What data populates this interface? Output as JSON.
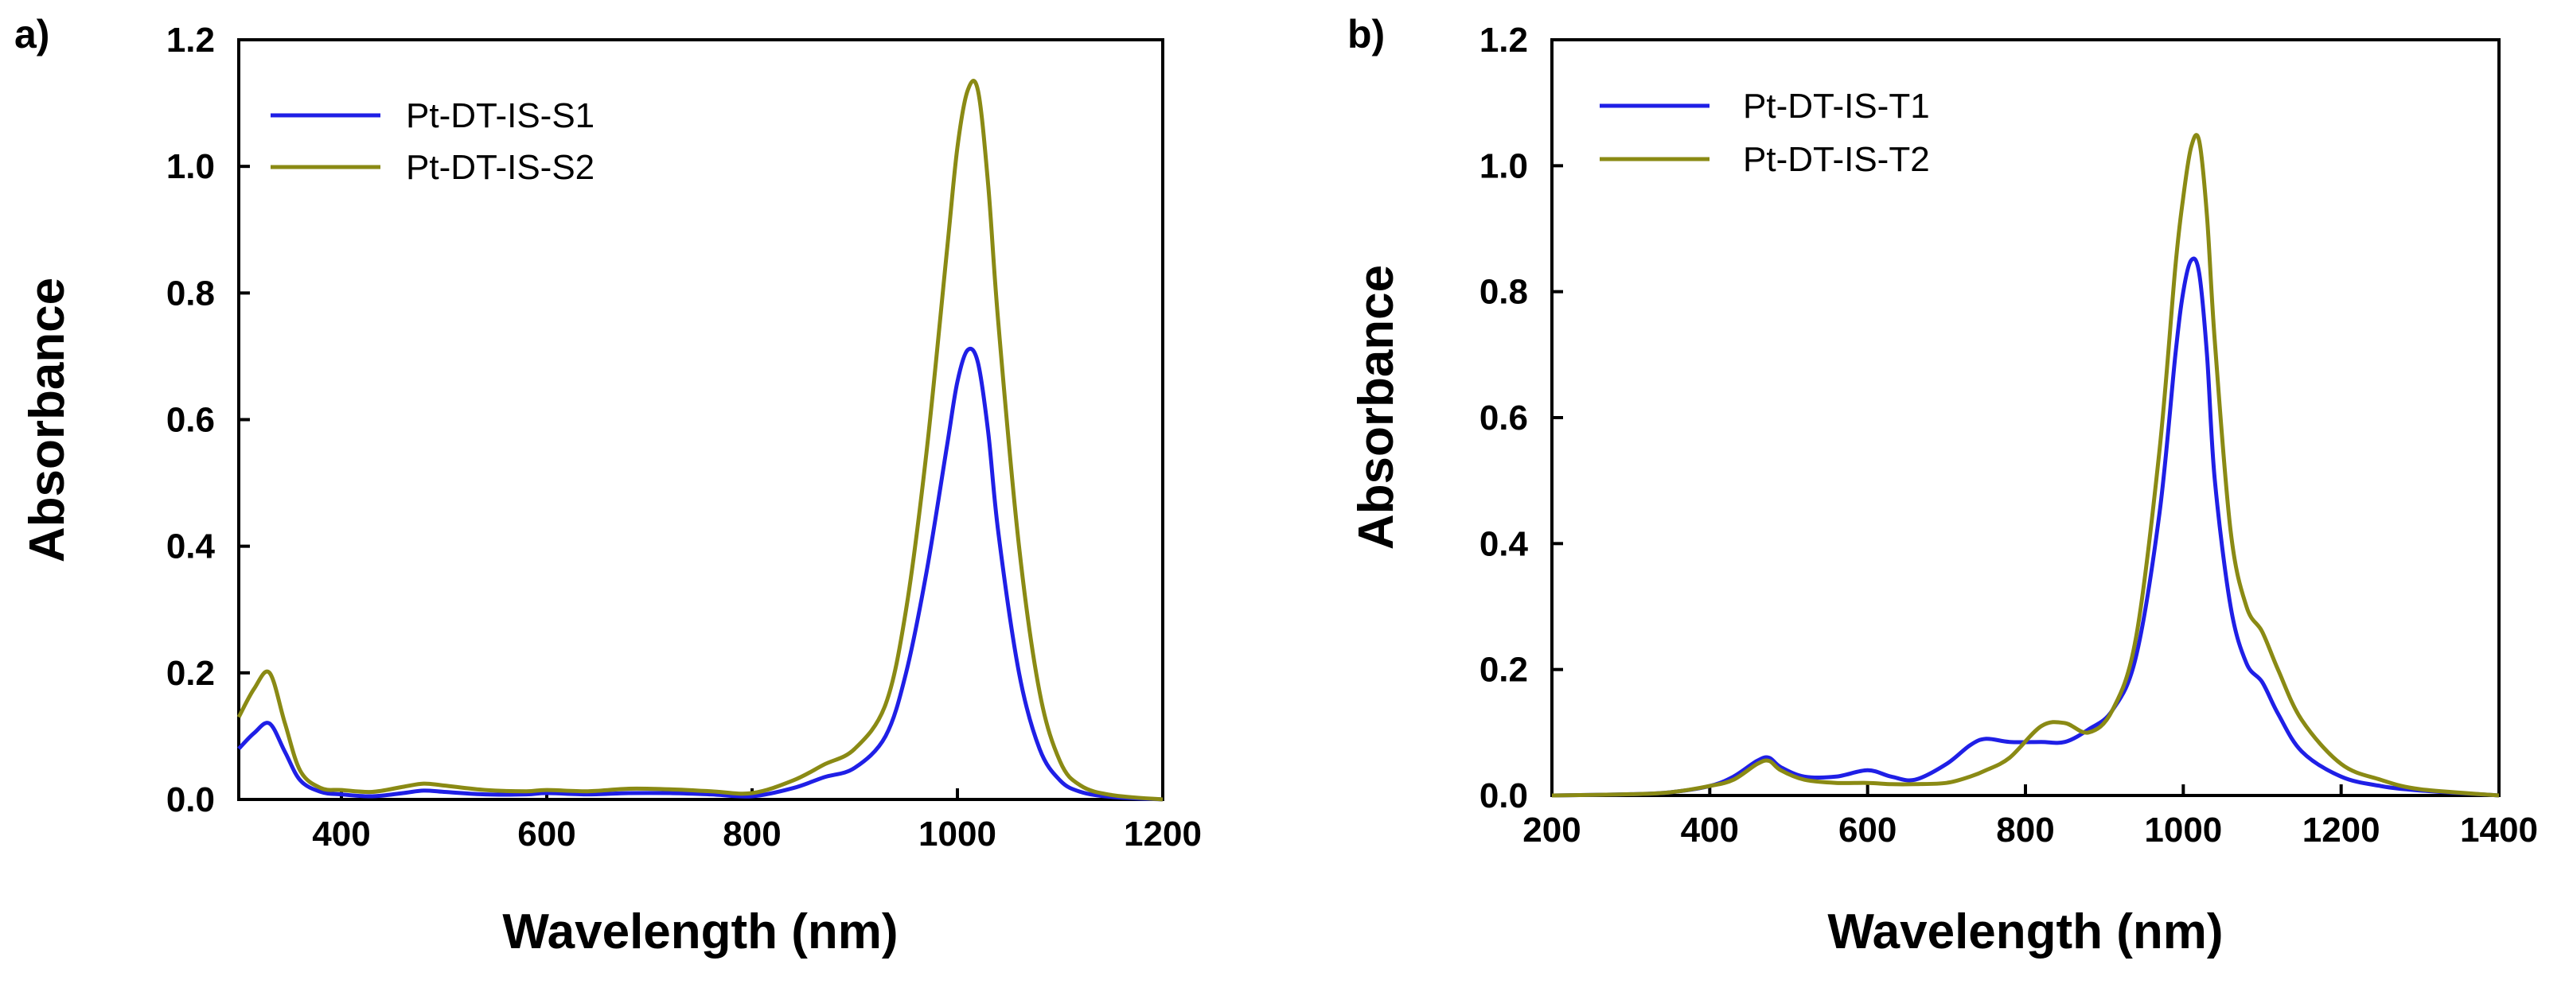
{
  "chart_data": [
    {
      "panel_label": "a)",
      "type": "line",
      "title": "",
      "xlabel": "Wavelength (nm)",
      "ylabel": "Absorbance",
      "xlim": [
        300,
        1200
      ],
      "ylim": [
        0,
        1.2
      ],
      "xticks": [
        400,
        600,
        800,
        1000,
        1200
      ],
      "xtick_labels": [
        "400",
        "600",
        "800",
        "1000",
        "1200"
      ],
      "yticks": [
        0,
        0.2,
        0.4,
        0.6,
        0.8,
        1.0,
        1.2
      ],
      "ytick_labels": [
        "0.0",
        "0.2",
        "0.4",
        "0.6",
        "0.8",
        "1.0",
        "1.2"
      ],
      "grid": false,
      "legend_position": "top-left",
      "series": [
        {
          "name": "Pt-DT-IS-S1",
          "color": "#1f1fe6",
          "x": [
            300,
            315,
            330,
            345,
            360,
            380,
            400,
            430,
            460,
            480,
            500,
            540,
            580,
            600,
            640,
            680,
            720,
            760,
            800,
            840,
            870,
            900,
            930,
            950,
            970,
            990,
            1000,
            1010,
            1020,
            1030,
            1040,
            1060,
            1080,
            1100,
            1120,
            1150,
            1200
          ],
          "y": [
            0.08,
            0.105,
            0.12,
            0.075,
            0.03,
            0.012,
            0.008,
            0.005,
            0.01,
            0.014,
            0.012,
            0.008,
            0.008,
            0.01,
            0.008,
            0.01,
            0.01,
            0.008,
            0.005,
            0.018,
            0.035,
            0.05,
            0.1,
            0.2,
            0.36,
            0.56,
            0.66,
            0.71,
            0.69,
            0.58,
            0.42,
            0.2,
            0.08,
            0.03,
            0.012,
            0.004,
            0.0
          ]
        },
        {
          "name": "Pt-DT-IS-S2",
          "color": "#8a8a14",
          "x": [
            300,
            315,
            330,
            345,
            360,
            380,
            400,
            430,
            460,
            480,
            500,
            540,
            580,
            600,
            640,
            680,
            720,
            760,
            800,
            840,
            870,
            900,
            930,
            950,
            970,
            990,
            1000,
            1010,
            1020,
            1030,
            1040,
            1060,
            1080,
            1100,
            1120,
            1150,
            1200
          ],
          "y": [
            0.13,
            0.175,
            0.2,
            0.12,
            0.045,
            0.018,
            0.015,
            0.012,
            0.02,
            0.025,
            0.022,
            0.015,
            0.013,
            0.015,
            0.013,
            0.017,
            0.016,
            0.013,
            0.01,
            0.03,
            0.055,
            0.08,
            0.15,
            0.3,
            0.55,
            0.87,
            1.03,
            1.12,
            1.12,
            0.97,
            0.75,
            0.4,
            0.17,
            0.06,
            0.022,
            0.007,
            0.0
          ]
        }
      ]
    },
    {
      "panel_label": "b)",
      "type": "line",
      "title": "",
      "xlabel": "Wavelength (nm)",
      "ylabel": "Absorbance",
      "xlim": [
        200,
        1400
      ],
      "ylim": [
        0,
        1.2
      ],
      "xticks": [
        200,
        400,
        600,
        800,
        1000,
        1200,
        1400
      ],
      "xtick_labels": [
        "200",
        "400",
        "600",
        "800",
        "1000",
        "1200",
        "1400"
      ],
      "yticks": [
        0,
        0.2,
        0.4,
        0.6,
        0.8,
        1.0,
        1.2
      ],
      "ytick_labels": [
        "0.0",
        "0.2",
        "0.4",
        "0.6",
        "0.8",
        "1.0",
        "1.2"
      ],
      "grid": false,
      "legend_position": "top-left",
      "series": [
        {
          "name": "Pt-DT-IS-T1",
          "color": "#1f1fe6",
          "x": [
            200,
            300,
            350,
            400,
            430,
            460,
            475,
            490,
            520,
            560,
            600,
            630,
            660,
            700,
            730,
            750,
            780,
            820,
            850,
            880,
            910,
            940,
            970,
            990,
            1000,
            1010,
            1020,
            1030,
            1040,
            1060,
            1080,
            1100,
            1120,
            1150,
            1200,
            1250,
            1300,
            1400
          ],
          "y": [
            0.0,
            0.002,
            0.005,
            0.015,
            0.03,
            0.055,
            0.06,
            0.045,
            0.03,
            0.03,
            0.04,
            0.03,
            0.025,
            0.05,
            0.08,
            0.09,
            0.085,
            0.085,
            0.085,
            0.105,
            0.135,
            0.22,
            0.45,
            0.7,
            0.8,
            0.85,
            0.83,
            0.7,
            0.5,
            0.3,
            0.21,
            0.18,
            0.13,
            0.07,
            0.03,
            0.015,
            0.008,
            0.0
          ]
        },
        {
          "name": "Pt-DT-IS-T2",
          "color": "#8a8a14",
          "x": [
            200,
            300,
            350,
            400,
            430,
            460,
            475,
            490,
            520,
            560,
            600,
            630,
            660,
            700,
            730,
            750,
            780,
            820,
            850,
            880,
            910,
            940,
            970,
            990,
            1000,
            1010,
            1020,
            1030,
            1040,
            1060,
            1080,
            1100,
            1120,
            1150,
            1200,
            1250,
            1300,
            1400
          ],
          "y": [
            0.0,
            0.002,
            0.005,
            0.015,
            0.025,
            0.05,
            0.055,
            0.04,
            0.025,
            0.02,
            0.02,
            0.018,
            0.018,
            0.02,
            0.03,
            0.04,
            0.06,
            0.11,
            0.115,
            0.1,
            0.135,
            0.25,
            0.55,
            0.84,
            0.95,
            1.03,
            1.04,
            0.92,
            0.72,
            0.42,
            0.3,
            0.26,
            0.2,
            0.12,
            0.05,
            0.025,
            0.01,
            0.0
          ]
        }
      ]
    }
  ]
}
